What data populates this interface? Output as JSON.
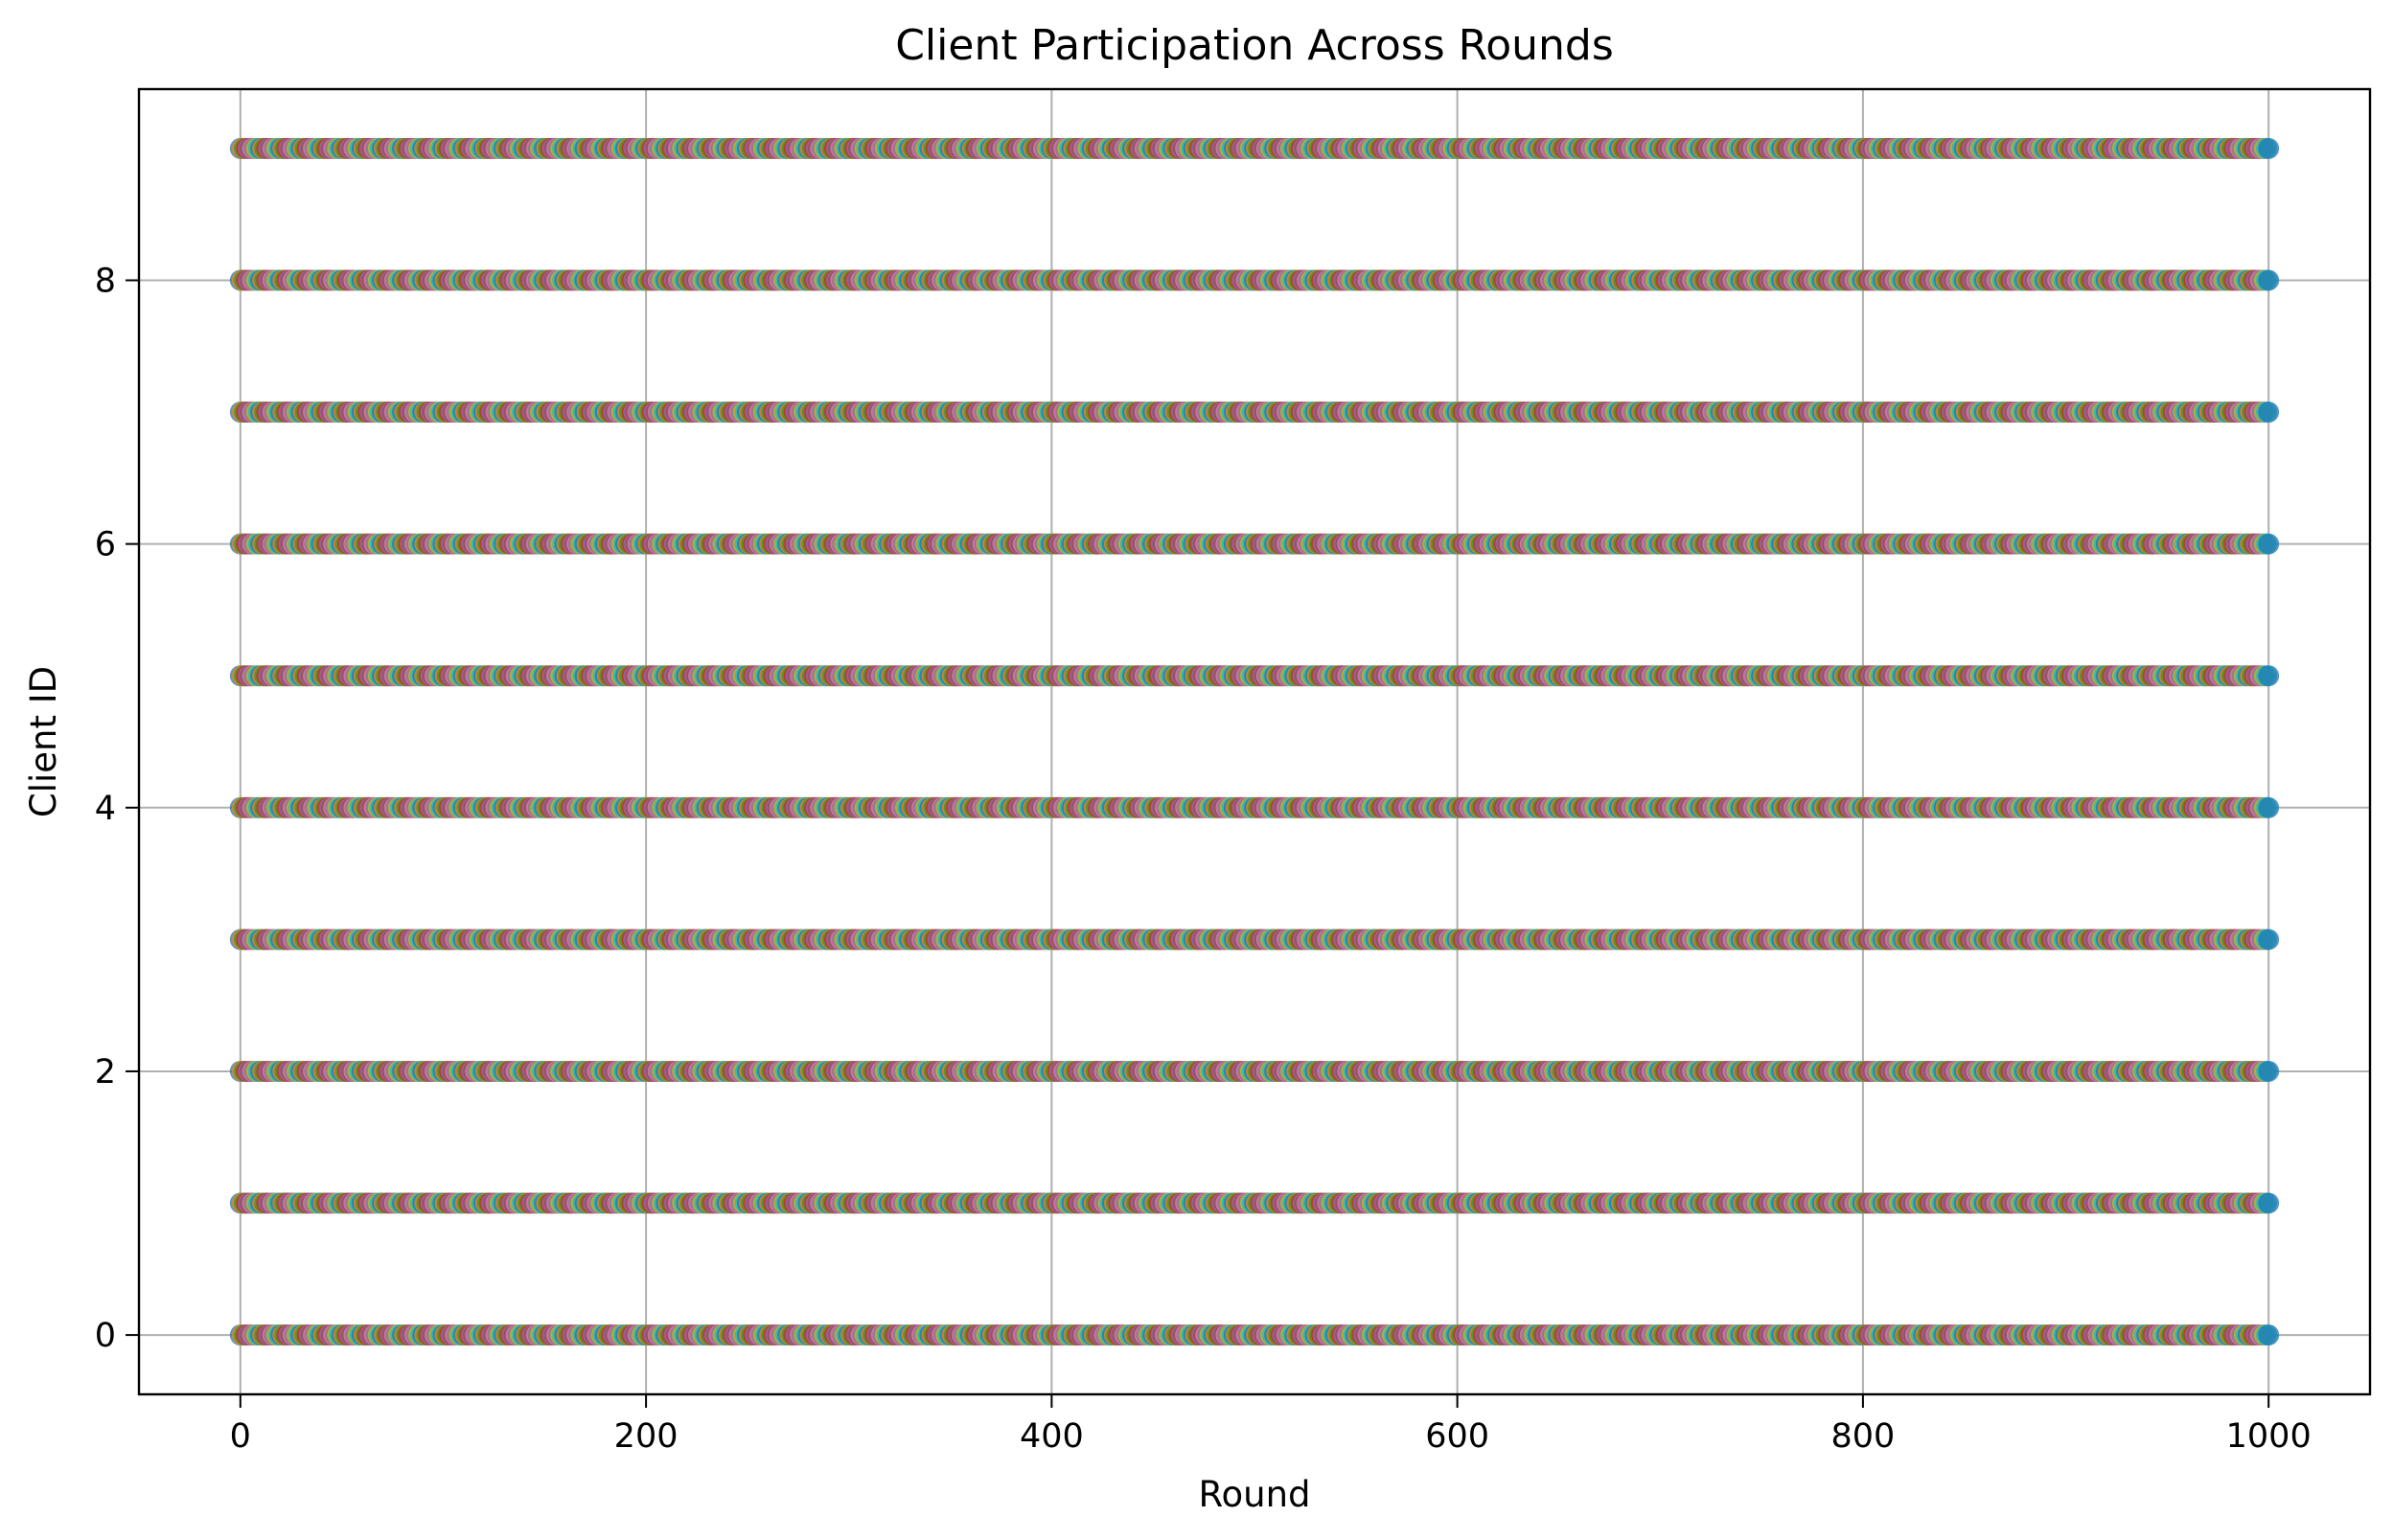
{
  "chart_data": {
    "type": "scatter",
    "title": "Client Participation Across Rounds",
    "xlabel": "Round",
    "ylabel": "Client ID",
    "xlim": [
      -50,
      1050
    ],
    "ylim": [
      -0.45,
      9.45
    ],
    "xticks": [
      0,
      200,
      400,
      600,
      800,
      1000
    ],
    "xtick_labels": [
      "0",
      "200",
      "400",
      "600",
      "800",
      "1000"
    ],
    "yticks": [
      0,
      2,
      4,
      6,
      8
    ],
    "ytick_labels": [
      "0",
      "2",
      "4",
      "6",
      "8"
    ],
    "grid": true,
    "legend": "none",
    "rounds": {
      "start": 0,
      "end": 1000,
      "step": 1
    },
    "client_ids": [
      0,
      1,
      2,
      3,
      4,
      5,
      6,
      7,
      8,
      9
    ],
    "series_note": "every client (0-9) participates in every round 0-1000; one colored series per round",
    "marker_alpha": 0.75,
    "palette": [
      "#1f77b4",
      "#ff7f0e",
      "#2ca02c",
      "#d62728",
      "#9467bd",
      "#8c564b",
      "#e377c2",
      "#7f7f7f",
      "#bcbd22",
      "#17becf"
    ]
  }
}
